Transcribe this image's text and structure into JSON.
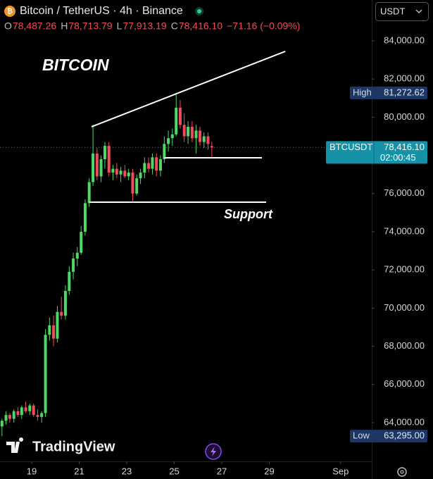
{
  "chart_data": {
    "type": "candlestick",
    "symbol_title": "Bitcoin / TetherUS · 4h · Binance",
    "ohlc_legend": [
      {
        "key": "O",
        "text": "78,487.26"
      },
      {
        "key": "H",
        "text": "78,713.79"
      },
      {
        "key": "L",
        "text": "77,913.19"
      },
      {
        "key": "C",
        "text": "78,416.10"
      }
    ],
    "change_text": "−71.16 (−0.09%)",
    "currency": "USDT",
    "annotations": [
      "BITCOIN",
      "Support"
    ],
    "branding": "TradingView",
    "up_color": "#4cd964",
    "down_color": "#f24b5a",
    "x": [
      17.75,
      17.92,
      18.08,
      18.25,
      18.42,
      18.58,
      18.75,
      18.92,
      19.08,
      19.25,
      19.42,
      19.58,
      19.75,
      19.92,
      20.08,
      20.25,
      20.42,
      20.58,
      20.75,
      20.92,
      21.08,
      21.25,
      21.42,
      21.58,
      21.75,
      21.92,
      22.08,
      22.25,
      22.42,
      22.58,
      22.75,
      22.92,
      23.08,
      23.25,
      23.42,
      23.58,
      23.75,
      23.92,
      24.08,
      24.25,
      24.42,
      24.58,
      24.75,
      24.92,
      25.08,
      25.25,
      25.42,
      25.58,
      25.75,
      25.92,
      26.08,
      26.25,
      26.42,
      26.58
    ],
    "open": [
      63800,
      64100,
      64400,
      64200,
      64600,
      64400,
      64800,
      64600,
      64900,
      64400,
      64300,
      64500,
      68600,
      69100,
      68400,
      69800,
      69600,
      70900,
      71900,
      72600,
      72900,
      74000,
      75500,
      76600,
      78100,
      76900,
      77800,
      78500,
      77100,
      77300,
      77000,
      77200,
      76900,
      77100,
      76000,
      76800,
      77100,
      77600,
      77300,
      77900,
      77200,
      77800,
      78600,
      78900,
      79100,
      80500,
      79600,
      79000,
      79500,
      78900,
      79300,
      78700,
      79000,
      78487.26
    ],
    "high": [
      64200,
      64600,
      64500,
      64700,
      64800,
      64900,
      65100,
      65000,
      65000,
      64700,
      64600,
      68900,
      69500,
      69600,
      70100,
      70600,
      71200,
      72200,
      72900,
      73200,
      74300,
      75700,
      76800,
      79600,
      78400,
      78000,
      78700,
      78700,
      77500,
      77600,
      77400,
      77500,
      77300,
      77300,
      77000,
      77300,
      77900,
      77900,
      78100,
      78100,
      78000,
      79000,
      79300,
      79400,
      81272.62,
      80900,
      80200,
      79800,
      79800,
      79600,
      79500,
      79200,
      79200,
      78713.79
    ],
    "low": [
      63295,
      63900,
      64000,
      64000,
      64300,
      64200,
      64500,
      64400,
      64300,
      64100,
      64000,
      64300,
      68300,
      68000,
      68200,
      69400,
      69400,
      70700,
      71500,
      72200,
      72800,
      73800,
      75300,
      76400,
      76700,
      76600,
      77300,
      76900,
      76700,
      76800,
      76600,
      76800,
      76700,
      75600,
      75900,
      76500,
      76800,
      77100,
      77000,
      76900,
      76900,
      77600,
      78200,
      78500,
      79000,
      79400,
      78700,
      78600,
      78700,
      78100,
      78500,
      78400,
      78300,
      77913.19
    ],
    "close": [
      64100,
      64400,
      64200,
      64600,
      64400,
      64800,
      64600,
      64900,
      64400,
      64300,
      64500,
      68600,
      69100,
      68400,
      69800,
      69600,
      70900,
      71900,
      72600,
      72900,
      74000,
      75500,
      76600,
      78100,
      76900,
      77800,
      78500,
      77100,
      77300,
      77000,
      77200,
      76900,
      77100,
      76000,
      76800,
      77100,
      77600,
      77300,
      77900,
      77200,
      77800,
      78600,
      78900,
      79100,
      80500,
      79600,
      79000,
      79500,
      78900,
      79300,
      78700,
      79000,
      78600,
      78416.1
    ],
    "xlim": [
      17.667,
      33.31
    ],
    "xticks": [
      19,
      21,
      23,
      25,
      27,
      29,
      {
        "value": 32,
        "label": "Sep"
      }
    ],
    "ylim": [
      61970,
      86140
    ],
    "yticks": [
      {
        "value": 64000,
        "label": "64,000.00"
      },
      {
        "value": 66000,
        "label": "66,000.00"
      },
      {
        "value": 68000,
        "label": "68,000.00"
      },
      {
        "value": 70000,
        "label": "70,000.00"
      },
      {
        "value": 72000,
        "label": "72,000.00"
      },
      {
        "value": 74000,
        "label": "74,000.00"
      },
      {
        "value": 76000,
        "label": "76,000.00"
      },
      {
        "value": 78000,
        "label": "78,000.00"
      },
      {
        "value": 80000,
        "label": "80,000.00"
      },
      {
        "value": 82000,
        "label": "82,000.00"
      },
      {
        "value": 84000,
        "label": "84,000.00"
      }
    ],
    "drawings": [
      {
        "x": [
          21.52,
          29.67
        ],
        "y": [
          79500,
          83450
        ]
      },
      {
        "x": [
          24.57,
          28.69
        ],
        "y": [
          77875,
          77875
        ]
      },
      {
        "x": [
          21.43,
          28.87
        ],
        "y": [
          75550,
          75550
        ]
      }
    ],
    "high_marker": {
      "label": "High",
      "value": 81272.62,
      "value_label": "81,272.62"
    },
    "low_marker": {
      "label": "Low",
      "value": 63295,
      "value_label": "63,295.00"
    },
    "last_price": {
      "label": "BTCUSDT",
      "value": 78416.1,
      "value_label": "78,416.10",
      "countdown": "02:00:45"
    }
  }
}
